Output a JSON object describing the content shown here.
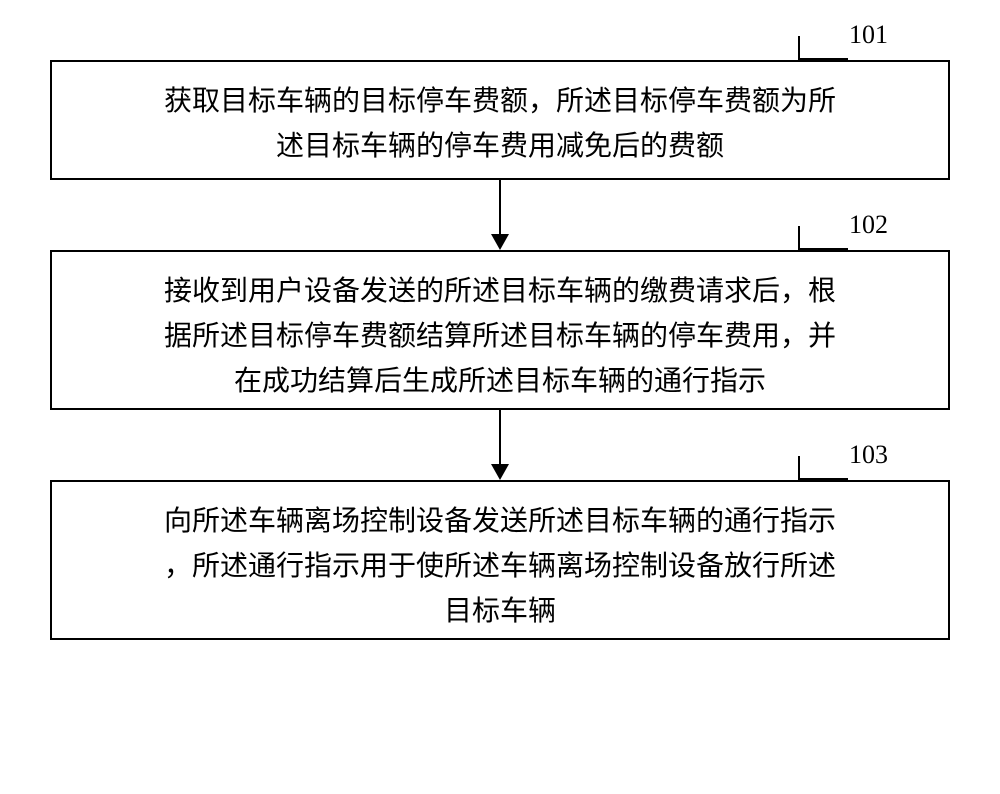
{
  "flowchart": {
    "type": "flowchart",
    "background_color": "#ffffff",
    "border_color": "#000000",
    "text_color": "#000000",
    "font_family": "SimSun",
    "box_fontsize": 28,
    "label_fontsize": 26,
    "line_width": 2,
    "steps": [
      {
        "id": "101",
        "label": "101",
        "lines": [
          "获取目标车辆的目标停车费额，所述目标停车费额为所",
          "述目标车辆的停车费用减免后的费额"
        ]
      },
      {
        "id": "102",
        "label": "102",
        "lines": [
          "接收到用户设备发送的所述目标车辆的缴费请求后，根",
          "据所述目标停车费额结算所述目标车辆的停车费用，并",
          "在成功结算后生成所述目标车辆的通行指示"
        ]
      },
      {
        "id": "103",
        "label": "103",
        "lines": [
          "向所述车辆离场控制设备发送所述目标车辆的通行指示",
          "，所述通行指示用于使所述车辆离场控制设备放行所述",
          "目标车辆"
        ]
      }
    ]
  }
}
